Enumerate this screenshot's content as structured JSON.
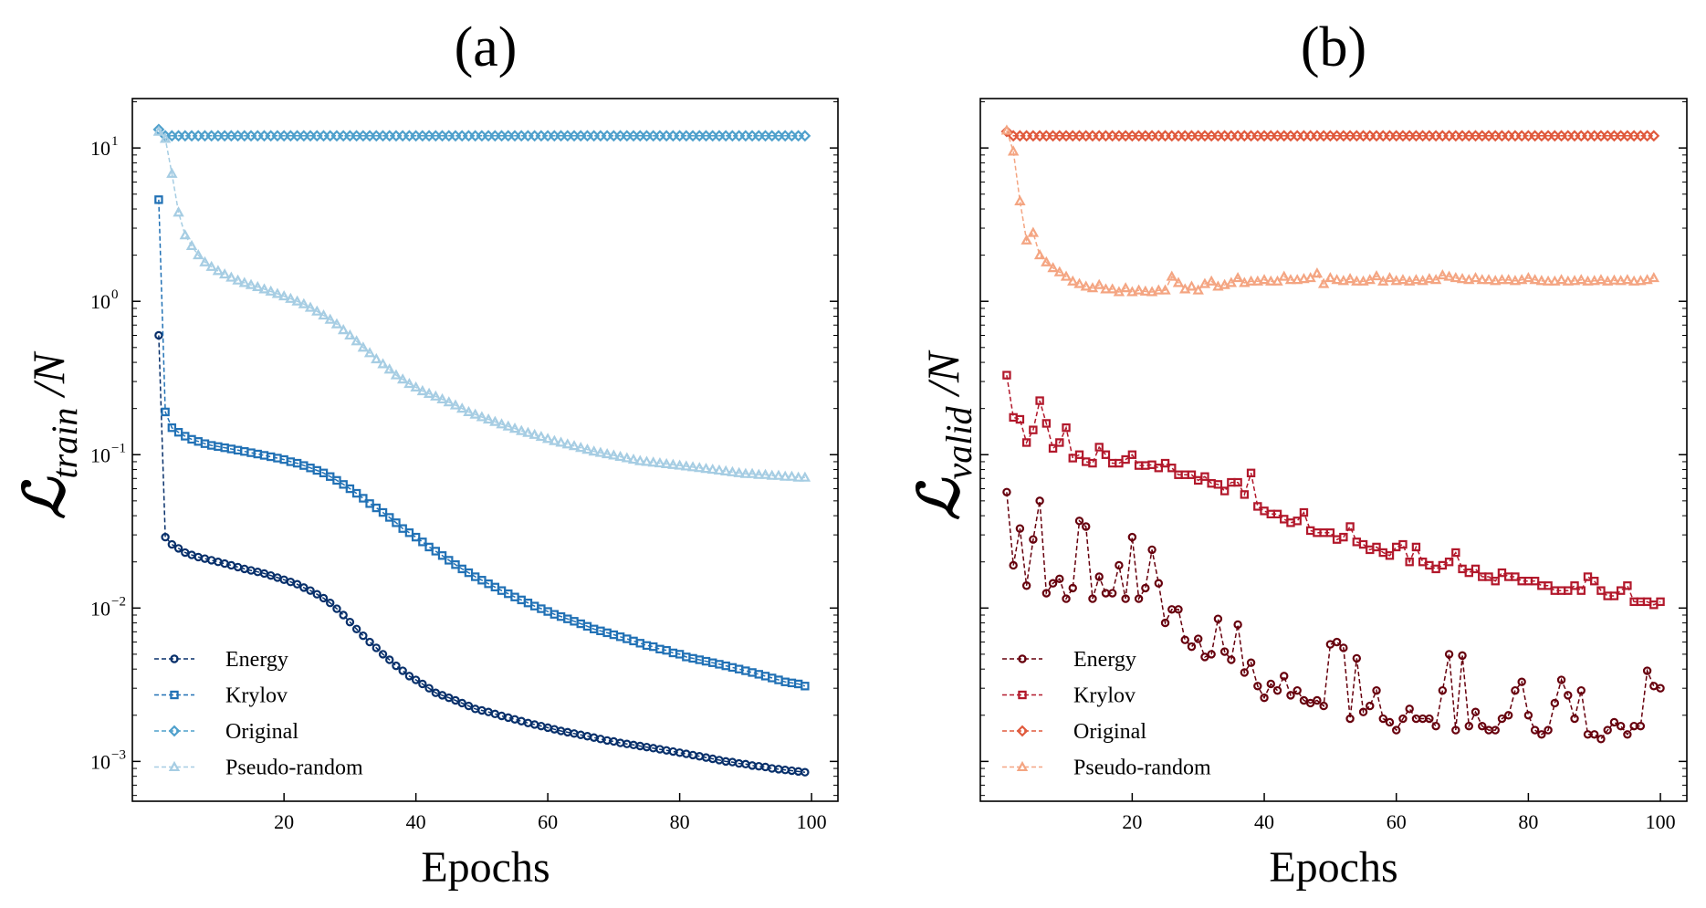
{
  "chart_data": [
    {
      "type": "line",
      "panel_title": "(a)",
      "xlabel": "Epochs",
      "ylabel": {
        "main": "ℒ",
        "sub": "train",
        "rest": " /N"
      },
      "yscale": "log",
      "xlim": [
        -3,
        104
      ],
      "ylim": [
        0.00055,
        21
      ],
      "xticks": [
        20,
        40,
        60,
        80,
        100
      ],
      "yticks": [
        {
          "value": 0.001,
          "exp": "−3"
        },
        {
          "value": 0.01,
          "exp": "−2"
        },
        {
          "value": 0.1,
          "exp": "−1"
        },
        {
          "value": 1,
          "exp": "0"
        },
        {
          "value": 10,
          "exp": "1"
        }
      ],
      "grid": false,
      "legend_position": "lower-left",
      "series": [
        {
          "name": "Energy",
          "marker": "circle",
          "color": "#08306b",
          "start_epoch": 1,
          "values": [
            0.6,
            0.029,
            0.026,
            0.0245,
            0.023,
            0.0222,
            0.0215,
            0.021,
            0.0205,
            0.02,
            0.0195,
            0.019,
            0.0185,
            0.018,
            0.0176,
            0.0172,
            0.0168,
            0.0163,
            0.0158,
            0.0153,
            0.0148,
            0.0143,
            0.0136,
            0.013,
            0.0123,
            0.0116,
            0.0108,
            0.0099,
            0.009,
            0.0081,
            0.0073,
            0.0066,
            0.006,
            0.0055,
            0.005,
            0.0046,
            0.0042,
            0.0039,
            0.0036,
            0.0034,
            0.0032,
            0.003,
            0.0028,
            0.0027,
            0.0026,
            0.0025,
            0.0024,
            0.0023,
            0.0022,
            0.00215,
            0.0021,
            0.00204,
            0.00198,
            0.00193,
            0.00188,
            0.00183,
            0.00178,
            0.00174,
            0.0017,
            0.00166,
            0.00162,
            0.00158,
            0.00155,
            0.00152,
            0.00149,
            0.00146,
            0.00143,
            0.0014,
            0.00137,
            0.00135,
            0.00132,
            0.0013,
            0.00128,
            0.00126,
            0.00124,
            0.00122,
            0.0012,
            0.00118,
            0.00116,
            0.00114,
            0.00112,
            0.0011,
            0.00108,
            0.00106,
            0.00104,
            0.00102,
            0.001,
            0.00099,
            0.00097,
            0.00096,
            0.00094,
            0.00093,
            0.00092,
            0.0009,
            0.00089,
            0.00088,
            0.00087,
            0.00086,
            0.00085
          ]
        },
        {
          "name": "Krylov",
          "marker": "square",
          "color": "#2171b5",
          "start_epoch": 1,
          "values": [
            4.6,
            0.19,
            0.15,
            0.14,
            0.132,
            0.126,
            0.122,
            0.118,
            0.115,
            0.113,
            0.111,
            0.109,
            0.107,
            0.105,
            0.103,
            0.101,
            0.099,
            0.097,
            0.095,
            0.093,
            0.09,
            0.088,
            0.085,
            0.082,
            0.079,
            0.076,
            0.072,
            0.068,
            0.064,
            0.06,
            0.056,
            0.052,
            0.048,
            0.045,
            0.042,
            0.039,
            0.036,
            0.033,
            0.031,
            0.029,
            0.027,
            0.025,
            0.0235,
            0.022,
            0.0205,
            0.0192,
            0.018,
            0.017,
            0.016,
            0.0152,
            0.0144,
            0.0137,
            0.013,
            0.0124,
            0.0118,
            0.0113,
            0.0108,
            0.0103,
            0.0099,
            0.0095,
            0.0091,
            0.0088,
            0.0085,
            0.0082,
            0.0079,
            0.0076,
            0.0073,
            0.0071,
            0.0069,
            0.0067,
            0.0065,
            0.0063,
            0.0061,
            0.0059,
            0.0057,
            0.0056,
            0.0054,
            0.0053,
            0.0051,
            0.005,
            0.0048,
            0.0047,
            0.0046,
            0.0045,
            0.0044,
            0.0043,
            0.0042,
            0.0041,
            0.004,
            0.0039,
            0.0038,
            0.0037,
            0.0036,
            0.0035,
            0.0034,
            0.0033,
            0.00325,
            0.0032,
            0.0031
          ]
        },
        {
          "name": "Original",
          "marker": "diamond",
          "color": "#4fa0cc",
          "start_epoch": 1,
          "constant": 12.0,
          "first": 13.2
        },
        {
          "name": "Pseudo-random",
          "marker": "triangle",
          "color": "#a6cde3",
          "start_epoch": 1,
          "values": [
            12.8,
            11.5,
            6.8,
            3.8,
            2.7,
            2.3,
            2.0,
            1.8,
            1.68,
            1.58,
            1.5,
            1.43,
            1.37,
            1.32,
            1.28,
            1.24,
            1.2,
            1.16,
            1.12,
            1.08,
            1.04,
            1.0,
            0.96,
            0.91,
            0.86,
            0.81,
            0.76,
            0.71,
            0.65,
            0.6,
            0.55,
            0.5,
            0.46,
            0.42,
            0.39,
            0.36,
            0.33,
            0.31,
            0.29,
            0.275,
            0.26,
            0.25,
            0.24,
            0.23,
            0.22,
            0.21,
            0.2,
            0.19,
            0.183,
            0.176,
            0.17,
            0.164,
            0.158,
            0.153,
            0.148,
            0.143,
            0.139,
            0.135,
            0.131,
            0.127,
            0.123,
            0.12,
            0.117,
            0.114,
            0.111,
            0.108,
            0.105,
            0.103,
            0.101,
            0.099,
            0.097,
            0.095,
            0.093,
            0.091,
            0.09,
            0.089,
            0.088,
            0.087,
            0.086,
            0.085,
            0.084,
            0.083,
            0.082,
            0.081,
            0.08,
            0.079,
            0.078,
            0.077,
            0.076,
            0.075,
            0.075,
            0.074,
            0.074,
            0.073,
            0.073,
            0.072,
            0.072,
            0.071,
            0.071
          ]
        }
      ]
    },
    {
      "type": "line",
      "panel_title": "(b)",
      "xlabel": "Epochs",
      "ylabel": {
        "main": "ℒ",
        "sub": "valid",
        "rest": " /N"
      },
      "yscale": "log",
      "xlim": [
        -3,
        104
      ],
      "ylim": [
        0.00055,
        21
      ],
      "xticks": [
        20,
        40,
        60,
        80,
        100
      ],
      "grid": false,
      "legend_position": "lower-left",
      "series": [
        {
          "name": "Energy",
          "marker": "circle",
          "color": "#67000d",
          "start_epoch": 1,
          "values": [
            0.057,
            0.019,
            0.033,
            0.014,
            0.028,
            0.05,
            0.0125,
            0.0145,
            0.0155,
            0.0115,
            0.0135,
            0.037,
            0.034,
            0.0115,
            0.016,
            0.0125,
            0.0125,
            0.019,
            0.0115,
            0.029,
            0.0115,
            0.0135,
            0.024,
            0.0145,
            0.008,
            0.0098,
            0.0098,
            0.0062,
            0.0056,
            0.0063,
            0.0048,
            0.005,
            0.0085,
            0.0052,
            0.0046,
            0.0078,
            0.0038,
            0.0044,
            0.0031,
            0.0026,
            0.0032,
            0.0029,
            0.0036,
            0.0027,
            0.0029,
            0.0025,
            0.0024,
            0.0025,
            0.0023,
            0.0058,
            0.006,
            0.0055,
            0.0019,
            0.0047,
            0.0021,
            0.0023,
            0.0029,
            0.0019,
            0.0018,
            0.0016,
            0.0019,
            0.0022,
            0.0019,
            0.0019,
            0.0019,
            0.0017,
            0.0029,
            0.005,
            0.0016,
            0.0049,
            0.0017,
            0.0021,
            0.0017,
            0.0016,
            0.0016,
            0.0019,
            0.002,
            0.0029,
            0.0033,
            0.002,
            0.0016,
            0.0015,
            0.0016,
            0.0024,
            0.0034,
            0.0027,
            0.0019,
            0.0029,
            0.0015,
            0.0015,
            0.0014,
            0.0016,
            0.0018,
            0.0017,
            0.0015,
            0.0017,
            0.0017,
            0.0039,
            0.0031,
            0.003
          ]
        },
        {
          "name": "Krylov",
          "marker": "square",
          "color": "#b2182b",
          "start_epoch": 1,
          "values": [
            0.33,
            0.175,
            0.17,
            0.12,
            0.145,
            0.225,
            0.16,
            0.11,
            0.12,
            0.15,
            0.095,
            0.1,
            0.09,
            0.088,
            0.112,
            0.1,
            0.088,
            0.088,
            0.093,
            0.1,
            0.085,
            0.085,
            0.086,
            0.082,
            0.088,
            0.082,
            0.074,
            0.074,
            0.074,
            0.068,
            0.072,
            0.065,
            0.064,
            0.058,
            0.066,
            0.066,
            0.055,
            0.076,
            0.046,
            0.043,
            0.041,
            0.041,
            0.038,
            0.036,
            0.037,
            0.042,
            0.032,
            0.031,
            0.031,
            0.031,
            0.028,
            0.029,
            0.034,
            0.027,
            0.026,
            0.024,
            0.025,
            0.023,
            0.022,
            0.025,
            0.026,
            0.02,
            0.025,
            0.02,
            0.019,
            0.018,
            0.019,
            0.02,
            0.023,
            0.018,
            0.017,
            0.018,
            0.016,
            0.016,
            0.015,
            0.017,
            0.016,
            0.016,
            0.015,
            0.015,
            0.015,
            0.014,
            0.014,
            0.013,
            0.013,
            0.013,
            0.014,
            0.013,
            0.016,
            0.015,
            0.013,
            0.012,
            0.012,
            0.013,
            0.014,
            0.011,
            0.011,
            0.011,
            0.0105,
            0.011
          ]
        },
        {
          "name": "Original",
          "marker": "diamond",
          "color": "#e05a3d",
          "start_epoch": 1,
          "constant": 12.0,
          "first": 12.8
        },
        {
          "name": "Pseudo-random",
          "marker": "triangle",
          "color": "#f4a582",
          "start_epoch": 1,
          "values": [
            13.0,
            9.5,
            4.5,
            2.5,
            2.8,
            2.0,
            1.8,
            1.65,
            1.55,
            1.45,
            1.35,
            1.3,
            1.25,
            1.22,
            1.28,
            1.2,
            1.2,
            1.15,
            1.22,
            1.15,
            1.18,
            1.16,
            1.15,
            1.18,
            1.18,
            1.45,
            1.32,
            1.2,
            1.25,
            1.18,
            1.3,
            1.35,
            1.25,
            1.28,
            1.32,
            1.42,
            1.32,
            1.35,
            1.35,
            1.38,
            1.35,
            1.35,
            1.45,
            1.38,
            1.38,
            1.4,
            1.42,
            1.52,
            1.3,
            1.42,
            1.38,
            1.36,
            1.4,
            1.35,
            1.35,
            1.38,
            1.46,
            1.35,
            1.42,
            1.36,
            1.38,
            1.35,
            1.38,
            1.36,
            1.4,
            1.38,
            1.48,
            1.45,
            1.42,
            1.4,
            1.38,
            1.42,
            1.38,
            1.38,
            1.36,
            1.38,
            1.38,
            1.36,
            1.38,
            1.42,
            1.38,
            1.36,
            1.35,
            1.35,
            1.38,
            1.35,
            1.36,
            1.38,
            1.35,
            1.36,
            1.38,
            1.35,
            1.37,
            1.36,
            1.38,
            1.35,
            1.36,
            1.38,
            1.42
          ]
        }
      ]
    }
  ]
}
